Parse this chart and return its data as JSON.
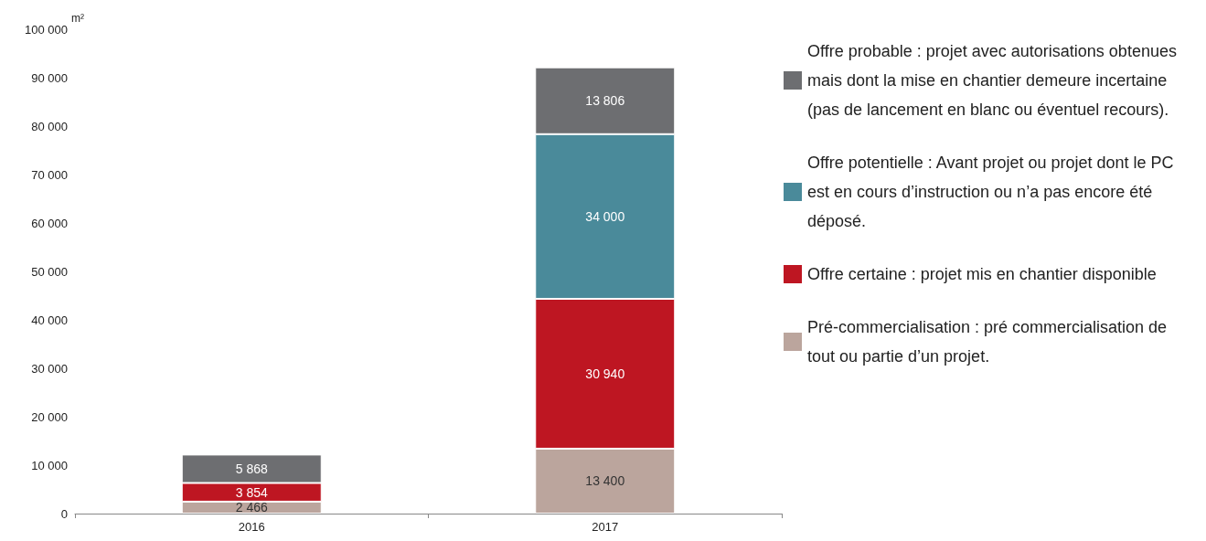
{
  "chart_data": {
    "type": "bar",
    "stacked": true,
    "categories": [
      "2016",
      "2017"
    ],
    "ylabel": "m²",
    "series": [
      {
        "name": "Pré-commercialisation : pré commercialisation de tout ou partie d’un projet.",
        "color": "#bba59d",
        "values": [
          2466,
          13400
        ]
      },
      {
        "name": "Offre certaine : projet mis en chantier disponible",
        "color": "#be1622",
        "values": [
          3854,
          30940
        ]
      },
      {
        "name": "Offre potentielle : Avant projet ou projet dont le PC est en cours d’instruction ou n’a pas encore été déposé.",
        "color": "#4a8a9a",
        "values": [
          null,
          34000
        ]
      },
      {
        "name": "Offre probable : projet avec autorisations obtenues mais dont la mise en chantier demeure incertaine (pas de lancement en blanc ou éventuel recours).",
        "color": "#6d6e71",
        "values": [
          5868,
          13806
        ]
      }
    ],
    "ylim": [
      0,
      100000
    ],
    "yticks": [
      0,
      10000,
      20000,
      30000,
      40000,
      50000,
      60000,
      70000,
      80000,
      90000,
      100000
    ],
    "data_labels": true,
    "grid": false,
    "legend": "right"
  }
}
